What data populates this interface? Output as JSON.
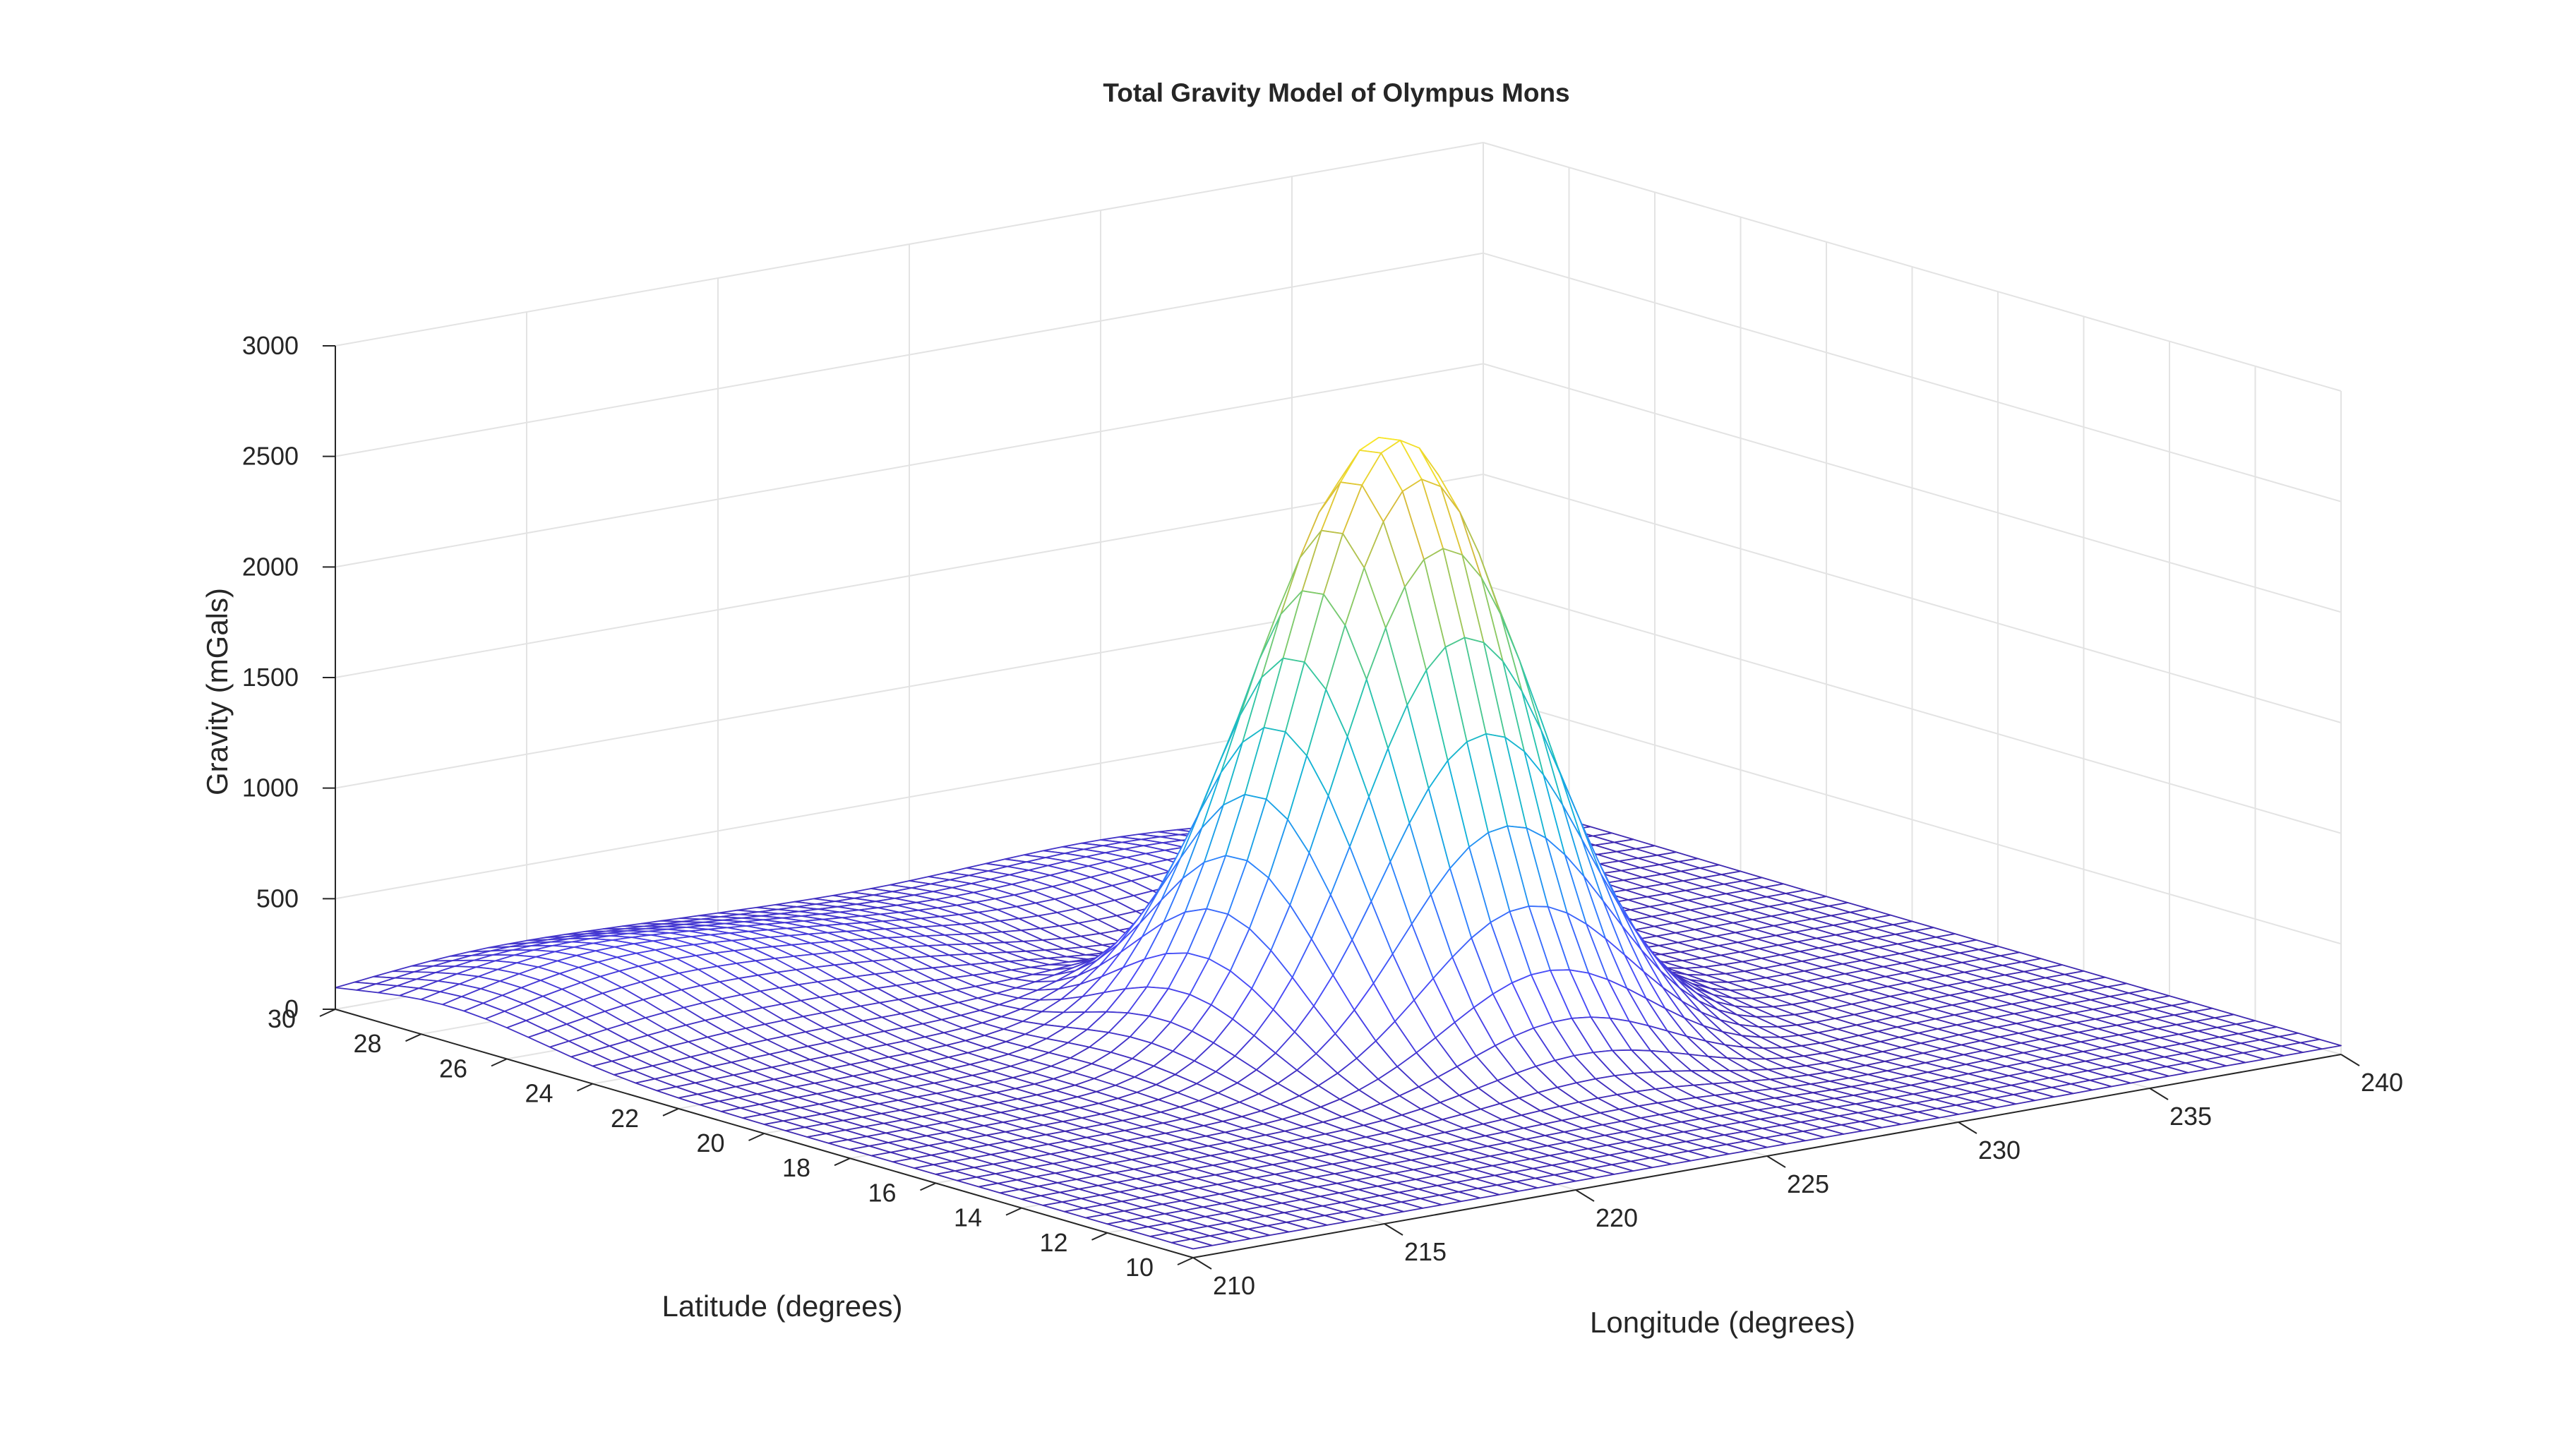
{
  "chart_data": {
    "type": "surface-mesh",
    "title": "Total Gravity Model of Olympus Mons",
    "xlabel": "Longitude (degrees)",
    "ylabel": "Latitude (degrees)",
    "zlabel": "Gravity (mGals)",
    "xlim": [
      210,
      240
    ],
    "ylim": [
      10,
      30
    ],
    "zlim": [
      0,
      3000
    ],
    "x_ticks": [
      "210",
      "215",
      "220",
      "225",
      "230",
      "235",
      "240"
    ],
    "y_ticks": [
      "10",
      "12",
      "14",
      "16",
      "18",
      "20",
      "22",
      "24",
      "26",
      "28",
      "30"
    ],
    "z_ticks": [
      "0",
      "500",
      "1000",
      "1500",
      "2000",
      "2500",
      "3000"
    ],
    "grid": true,
    "colormap": "parula",
    "colormap_stops": [
      "#3e26a8",
      "#4a48f6",
      "#2f80ff",
      "#12b1dc",
      "#2dc6a8",
      "#81cb6a",
      "#d6bc3d",
      "#fbe925"
    ],
    "peak": {
      "longitude": 225.5,
      "latitude": 19.2,
      "gravity": 2700
    },
    "surface": {
      "x_range": [
        210,
        240
      ],
      "y_range": [
        10,
        30
      ],
      "nx": 61,
      "ny": 41,
      "features": [
        {
          "kind": "peak",
          "longitude": 225.5,
          "latitude": 19.2,
          "amplitude": 2700,
          "spread_lon": 2.7,
          "spread_lat": 2.0
        },
        {
          "kind": "ridge",
          "longitude": 218,
          "latitude": 27,
          "amplitude": 180,
          "spread_lon": 5,
          "spread_lat": 2.5
        },
        {
          "kind": "ridge",
          "longitude": 230,
          "latitude": 28,
          "amplitude": 150,
          "spread_lon": 4,
          "spread_lat": 2.5
        },
        {
          "kind": "ridge",
          "longitude": 213,
          "latitude": 27.5,
          "amplitude": 120,
          "spread_lon": 3,
          "spread_lat": 2
        },
        {
          "kind": "moat",
          "longitude": 226,
          "latitude": 25,
          "amplitude": -80,
          "spread_lon": 3,
          "spread_lat": 1.8
        },
        {
          "kind": "moat",
          "longitude": 230,
          "latitude": 17,
          "amplitude": -70,
          "spread_lon": 2.5,
          "spread_lat": 3
        }
      ]
    }
  }
}
